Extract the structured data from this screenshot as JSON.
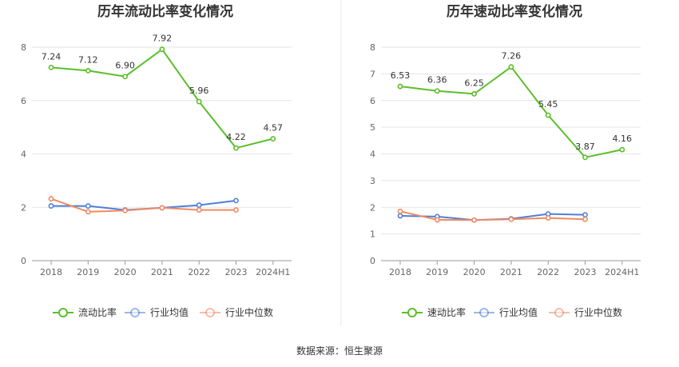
{
  "colors": {
    "main": "#5bbf2a",
    "industry_avg": "#4f7fd9",
    "industry_median": "#f08a62",
    "grid": "#e6e6e6",
    "axis": "#999999",
    "divider": "#e8e8e8"
  },
  "source": "数据来源：恒生聚源",
  "chart_data": [
    {
      "type": "line",
      "title": "历年流动比率变化情况",
      "categories": [
        "2018",
        "2019",
        "2020",
        "2021",
        "2022",
        "2023",
        "2024H1"
      ],
      "ylim": [
        0,
        8
      ],
      "yticks": [
        0,
        2,
        4,
        6,
        8
      ],
      "grid": true,
      "legend_position": "bottom",
      "series": [
        {
          "name": "流动比率",
          "key": "main",
          "values": [
            7.24,
            7.12,
            6.9,
            7.92,
            5.96,
            4.22,
            4.57
          ],
          "labels": [
            "7.24",
            "7.12",
            "6.90",
            "7.92",
            "5.96",
            "4.22",
            "4.57"
          ]
        },
        {
          "name": "行业均值",
          "key": "industry_avg",
          "values": [
            2.05,
            2.05,
            1.9,
            1.98,
            2.08,
            2.25,
            null
          ]
        },
        {
          "name": "行业中位数",
          "key": "industry_median",
          "values": [
            2.32,
            1.83,
            1.88,
            1.98,
            1.9,
            1.9,
            null
          ]
        }
      ]
    },
    {
      "type": "line",
      "title": "历年速动比率变化情况",
      "categories": [
        "2018",
        "2019",
        "2020",
        "2021",
        "2022",
        "2023",
        "2024H1"
      ],
      "ylim": [
        0,
        8
      ],
      "yticks": [
        0,
        1,
        2,
        3,
        4,
        5,
        6,
        7,
        8
      ],
      "grid": true,
      "legend_position": "bottom",
      "series": [
        {
          "name": "速动比率",
          "key": "main",
          "values": [
            6.53,
            6.36,
            6.25,
            7.26,
            5.45,
            3.87,
            4.16
          ],
          "labels": [
            "6.53",
            "6.36",
            "6.25",
            "7.26",
            "5.45",
            "3.87",
            "4.16"
          ]
        },
        {
          "name": "行业均值",
          "key": "industry_avg",
          "values": [
            1.68,
            1.65,
            1.52,
            1.57,
            1.75,
            1.72,
            null
          ]
        },
        {
          "name": "行业中位数",
          "key": "industry_median",
          "values": [
            1.85,
            1.53,
            1.52,
            1.55,
            1.6,
            1.55,
            null
          ]
        }
      ]
    }
  ]
}
